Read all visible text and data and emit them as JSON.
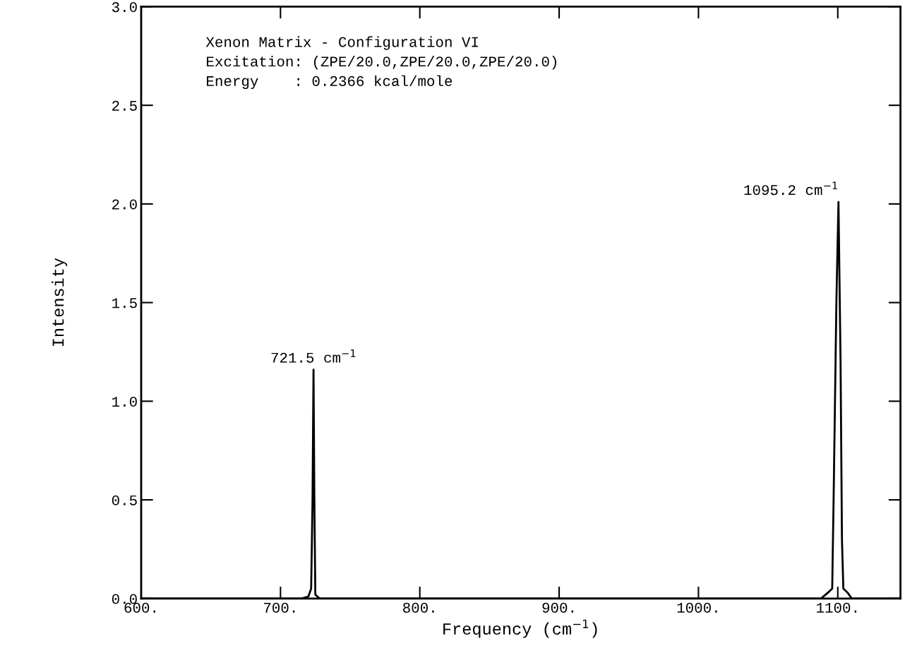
{
  "chart_data": {
    "type": "line",
    "xlabel": "Frequency (cm$^{−1}$)",
    "ylabel": "Intensity",
    "x": [
      600,
      715,
      720,
      722,
      723,
      723.7,
      724.3,
      725,
      728,
      1088,
      1093,
      1096,
      1097,
      1099,
      1100.5,
      1102,
      1103,
      1104,
      1107,
      1110,
      1145
    ],
    "series": [
      {
        "color": "#000000",
        "values": [
          0,
          0,
          0.01,
          0.05,
          0.5,
          1.16,
          0.5,
          0.02,
          0,
          0,
          0.03,
          0.05,
          0.5,
          1.5,
          2.01,
          1.2,
          0.3,
          0.05,
          0.03,
          0,
          0
        ]
      }
    ],
    "xlim": [
      600,
      1145
    ],
    "ylim": [
      0,
      3
    ],
    "xticks": [
      {
        "value": 600,
        "label": "600."
      },
      {
        "value": 700,
        "label": "700."
      },
      {
        "value": 800,
        "label": "800."
      },
      {
        "value": 900,
        "label": "900."
      },
      {
        "value": 1000,
        "label": "1000."
      },
      {
        "value": 1100,
        "label": "1100."
      }
    ],
    "yticks": [
      {
        "value": 0,
        "label": "0.0"
      },
      {
        "value": 0.5,
        "label": "0.5"
      },
      {
        "value": 1,
        "label": "1.0"
      },
      {
        "value": 1.5,
        "label": "1.5"
      },
      {
        "value": 2,
        "label": "2.0"
      },
      {
        "value": 2.5,
        "label": "2.5"
      },
      {
        "value": 3,
        "label": "3.0"
      }
    ],
    "annotations": [
      "Xenon Matrix - Configuration VI",
      "Excitation: (ZPE/20.0,ZPE/20.0,ZPE/20.0)",
      "Energy    : 0.2366 kcal/mole",
      {
        "text": "721.5 cm$^{−1}$",
        "x": 723.7,
        "y": 1.16
      },
      {
        "text": "1095.2 cm$^{−1}$",
        "x": 1100.5,
        "y": 2.01
      }
    ],
    "grid": false,
    "legend": false,
    "marker": "none",
    "line_style": "solid"
  }
}
